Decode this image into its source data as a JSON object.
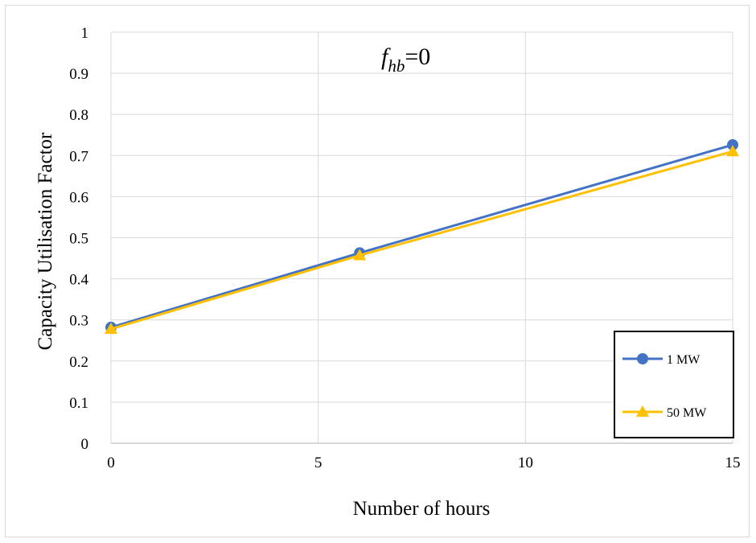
{
  "chart_data": {
    "type": "line",
    "xlabel": "Number of hours",
    "ylabel": "Capacity Utilisation Factor",
    "xlim": [
      0,
      15
    ],
    "ylim": [
      0,
      1
    ],
    "xticks": [
      0,
      5,
      10,
      15
    ],
    "yticks": [
      0,
      0.1,
      0.2,
      0.3,
      0.4,
      0.5,
      0.6,
      0.7,
      0.8,
      0.9,
      1
    ],
    "grid": true,
    "legend_position": "bottom-right",
    "annotation": {
      "base": "f",
      "subscript": "hb",
      "suffix": "=0"
    },
    "series": [
      {
        "name": "1 MW",
        "color": "#4472C4",
        "marker": "circle",
        "x": [
          0,
          6,
          15
        ],
        "y": [
          0.282,
          0.463,
          0.726
        ]
      },
      {
        "name": "50 MW",
        "color": "#FFC000",
        "marker": "triangle",
        "x": [
          0,
          6,
          15
        ],
        "y": [
          0.278,
          0.457,
          0.71
        ]
      }
    ]
  }
}
